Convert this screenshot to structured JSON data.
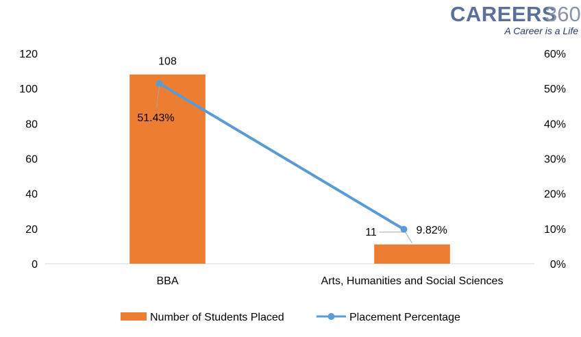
{
  "brand": {
    "name": "CAREERS",
    "number": "360",
    "tagline": "A Career is a Life"
  },
  "colors": {
    "bar": "#ED7D31",
    "line": "#5B9BD5",
    "axis": "#d9d9d9",
    "leader": "#a6a6a6"
  },
  "chart_data": {
    "type": "bar",
    "categories": [
      "BBA",
      "Arts, Humanities and Social Sciences"
    ],
    "series": [
      {
        "name": "Number of Students Placed",
        "type": "bar",
        "axis": "left",
        "values": [
          108,
          11
        ],
        "labels": [
          "108",
          "11"
        ]
      },
      {
        "name": "Placement Percentage",
        "type": "line",
        "axis": "right",
        "values": [
          51.43,
          9.82
        ],
        "labels": [
          "51.43%",
          "9.82%"
        ]
      }
    ],
    "ylim": [
      0,
      120
    ],
    "y_ticks": [
      "0",
      "20",
      "40",
      "60",
      "80",
      "100",
      "120"
    ],
    "y2lim": [
      0,
      60
    ],
    "y2_ticks": [
      "0%",
      "10%",
      "20%",
      "30%",
      "40%",
      "50%",
      "60%"
    ],
    "grid": false,
    "legend_position": "bottom"
  }
}
